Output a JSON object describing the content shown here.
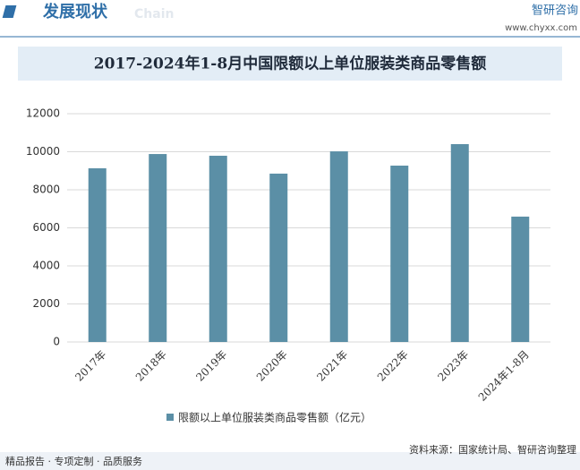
{
  "header": {
    "title": "发展现状",
    "title_en": "Chain",
    "brand": "智研咨询",
    "url": "www.chyxx.com"
  },
  "chart_data": {
    "type": "bar",
    "title": "2017-2024年1-8月中国限额以上单位服装类商品零售额",
    "categories": [
      "2017年",
      "2018年",
      "2019年",
      "2020年",
      "2021年",
      "2022年",
      "2023年",
      "2024年1-8月"
    ],
    "series": [
      {
        "name": "限额以上单位服装类商品零售额（亿元）",
        "color": "#5b8fa6",
        "values": [
          9130,
          9880,
          9790,
          8850,
          10020,
          9270,
          10400,
          6590
        ]
      }
    ],
    "ylim": [
      0,
      12000
    ],
    "yticks": [
      0,
      2000,
      4000,
      6000,
      8000,
      10000,
      12000
    ],
    "grid": true
  },
  "footer": {
    "services": "精品报告 · 专项定制 · 品质服务",
    "source": "资料来源：国家统计局、智研咨询整理"
  }
}
